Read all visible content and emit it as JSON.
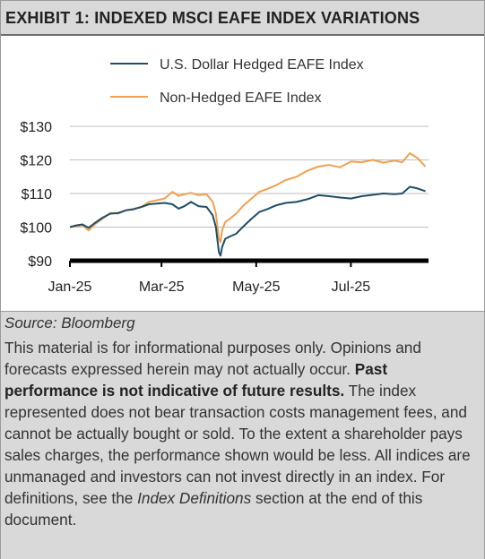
{
  "header": {
    "title": "EXHIBIT 1: INDEXED MSCI EAFE INDEX VARIATIONS"
  },
  "colors": {
    "hedged": "#1f4e66",
    "nonhedged": "#f0a050",
    "axis": "#000000",
    "grid": "#bdbdbd"
  },
  "chart_data": {
    "type": "line",
    "title": "",
    "xlabel": "",
    "ylabel": "",
    "ylim": [
      90,
      130
    ],
    "yticks": [
      90,
      100,
      110,
      120,
      130
    ],
    "ytick_labels": [
      "$90",
      "$100",
      "$110",
      "$120",
      "$130"
    ],
    "xticks": [
      "2025-01-01",
      "2025-03-01",
      "2025-05-01",
      "2025-07-01"
    ],
    "xtick_labels": [
      "Jan-25",
      "Mar-25",
      "May-25",
      "Jul-25"
    ],
    "xlim": [
      "2025-01-01",
      "2025-08-20"
    ],
    "grid": true,
    "legend_position": "top",
    "series": [
      {
        "name": "U.S. Dollar Hedged EAFE Index",
        "color": "#1f4e66",
        "points": [
          [
            "2025-01-01",
            100.0
          ],
          [
            "2025-01-05",
            100.5
          ],
          [
            "2025-01-09",
            100.8
          ],
          [
            "2025-01-13",
            99.8
          ],
          [
            "2025-01-17",
            101.2
          ],
          [
            "2025-01-22",
            102.8
          ],
          [
            "2025-01-27",
            104.0
          ],
          [
            "2025-02-01",
            104.2
          ],
          [
            "2025-02-06",
            105.0
          ],
          [
            "2025-02-11",
            105.3
          ],
          [
            "2025-02-16",
            106.0
          ],
          [
            "2025-02-21",
            106.8
          ],
          [
            "2025-02-26",
            107.0
          ],
          [
            "2025-03-03",
            107.2
          ],
          [
            "2025-03-08",
            106.8
          ],
          [
            "2025-03-12",
            105.5
          ],
          [
            "2025-03-16",
            106.3
          ],
          [
            "2025-03-20",
            107.5
          ],
          [
            "2025-03-25",
            106.2
          ],
          [
            "2025-03-30",
            106.0
          ],
          [
            "2025-04-03",
            103.5
          ],
          [
            "2025-04-05",
            100.0
          ],
          [
            "2025-04-07",
            92.5
          ],
          [
            "2025-04-08",
            91.5
          ],
          [
            "2025-04-09",
            94.0
          ],
          [
            "2025-04-11",
            96.5
          ],
          [
            "2025-04-14",
            97.2
          ],
          [
            "2025-04-18",
            98.0
          ],
          [
            "2025-04-23",
            100.3
          ],
          [
            "2025-04-28",
            102.5
          ],
          [
            "2025-05-03",
            104.5
          ],
          [
            "2025-05-08",
            105.3
          ],
          [
            "2025-05-14",
            106.5
          ],
          [
            "2025-05-20",
            107.2
          ],
          [
            "2025-05-27",
            107.5
          ],
          [
            "2025-06-03",
            108.3
          ],
          [
            "2025-06-10",
            109.5
          ],
          [
            "2025-06-17",
            109.2
          ],
          [
            "2025-06-24",
            108.8
          ],
          [
            "2025-07-01",
            108.5
          ],
          [
            "2025-07-08",
            109.2
          ],
          [
            "2025-07-15",
            109.6
          ],
          [
            "2025-07-22",
            110.0
          ],
          [
            "2025-07-29",
            109.8
          ],
          [
            "2025-08-03",
            110.0
          ],
          [
            "2025-08-08",
            112.0
          ],
          [
            "2025-08-13",
            111.5
          ],
          [
            "2025-08-18",
            110.7
          ]
        ]
      },
      {
        "name": "Non-Hedged EAFE Index",
        "color": "#f0a050",
        "points": [
          [
            "2025-01-01",
            100.0
          ],
          [
            "2025-01-05",
            100.2
          ],
          [
            "2025-01-09",
            100.6
          ],
          [
            "2025-01-13",
            99.0
          ],
          [
            "2025-01-17",
            100.8
          ],
          [
            "2025-01-22",
            102.5
          ],
          [
            "2025-01-27",
            104.2
          ],
          [
            "2025-02-01",
            104.0
          ],
          [
            "2025-02-06",
            105.0
          ],
          [
            "2025-02-11",
            105.4
          ],
          [
            "2025-02-16",
            106.0
          ],
          [
            "2025-02-21",
            107.5
          ],
          [
            "2025-02-26",
            108.0
          ],
          [
            "2025-03-03",
            108.5
          ],
          [
            "2025-03-08",
            110.5
          ],
          [
            "2025-03-12",
            109.3
          ],
          [
            "2025-03-16",
            109.8
          ],
          [
            "2025-03-20",
            110.2
          ],
          [
            "2025-03-25",
            109.5
          ],
          [
            "2025-03-30",
            109.8
          ],
          [
            "2025-04-03",
            107.5
          ],
          [
            "2025-04-05",
            104.0
          ],
          [
            "2025-04-07",
            96.5
          ],
          [
            "2025-04-08",
            95.5
          ],
          [
            "2025-04-09",
            99.0
          ],
          [
            "2025-04-11",
            101.5
          ],
          [
            "2025-04-14",
            102.5
          ],
          [
            "2025-04-18",
            104.0
          ],
          [
            "2025-04-23",
            106.5
          ],
          [
            "2025-04-28",
            108.5
          ],
          [
            "2025-05-03",
            110.5
          ],
          [
            "2025-05-08",
            111.3
          ],
          [
            "2025-05-14",
            112.5
          ],
          [
            "2025-05-20",
            114.0
          ],
          [
            "2025-05-27",
            115.0
          ],
          [
            "2025-06-03",
            116.8
          ],
          [
            "2025-06-10",
            118.0
          ],
          [
            "2025-06-17",
            118.5
          ],
          [
            "2025-06-24",
            117.8
          ],
          [
            "2025-07-01",
            119.5
          ],
          [
            "2025-07-08",
            119.3
          ],
          [
            "2025-07-15",
            120.0
          ],
          [
            "2025-07-22",
            119.2
          ],
          [
            "2025-07-29",
            119.8
          ],
          [
            "2025-08-03",
            119.3
          ],
          [
            "2025-08-08",
            122.0
          ],
          [
            "2025-08-13",
            120.5
          ],
          [
            "2025-08-18",
            118.0
          ]
        ]
      }
    ]
  },
  "footer": {
    "source": "Source: Bloomberg",
    "disclaimer_1": "This material is for informational purposes only. Opinions and forecasts expressed herein may not actually occur.",
    "disclaimer_bold": "Past performance is not indicative of future results.",
    "disclaimer_2": "The index represented does not bear transaction costs management fees, and cannot be actually bought or sold. To the extent a shareholder pays sales charges, the performance shown would be less. All indices are unmanaged and investors can not invest directly in an index. For definitions, see the",
    "disclaimer_italic": "Index Definitions",
    "disclaimer_3": "section at the end of this document."
  }
}
